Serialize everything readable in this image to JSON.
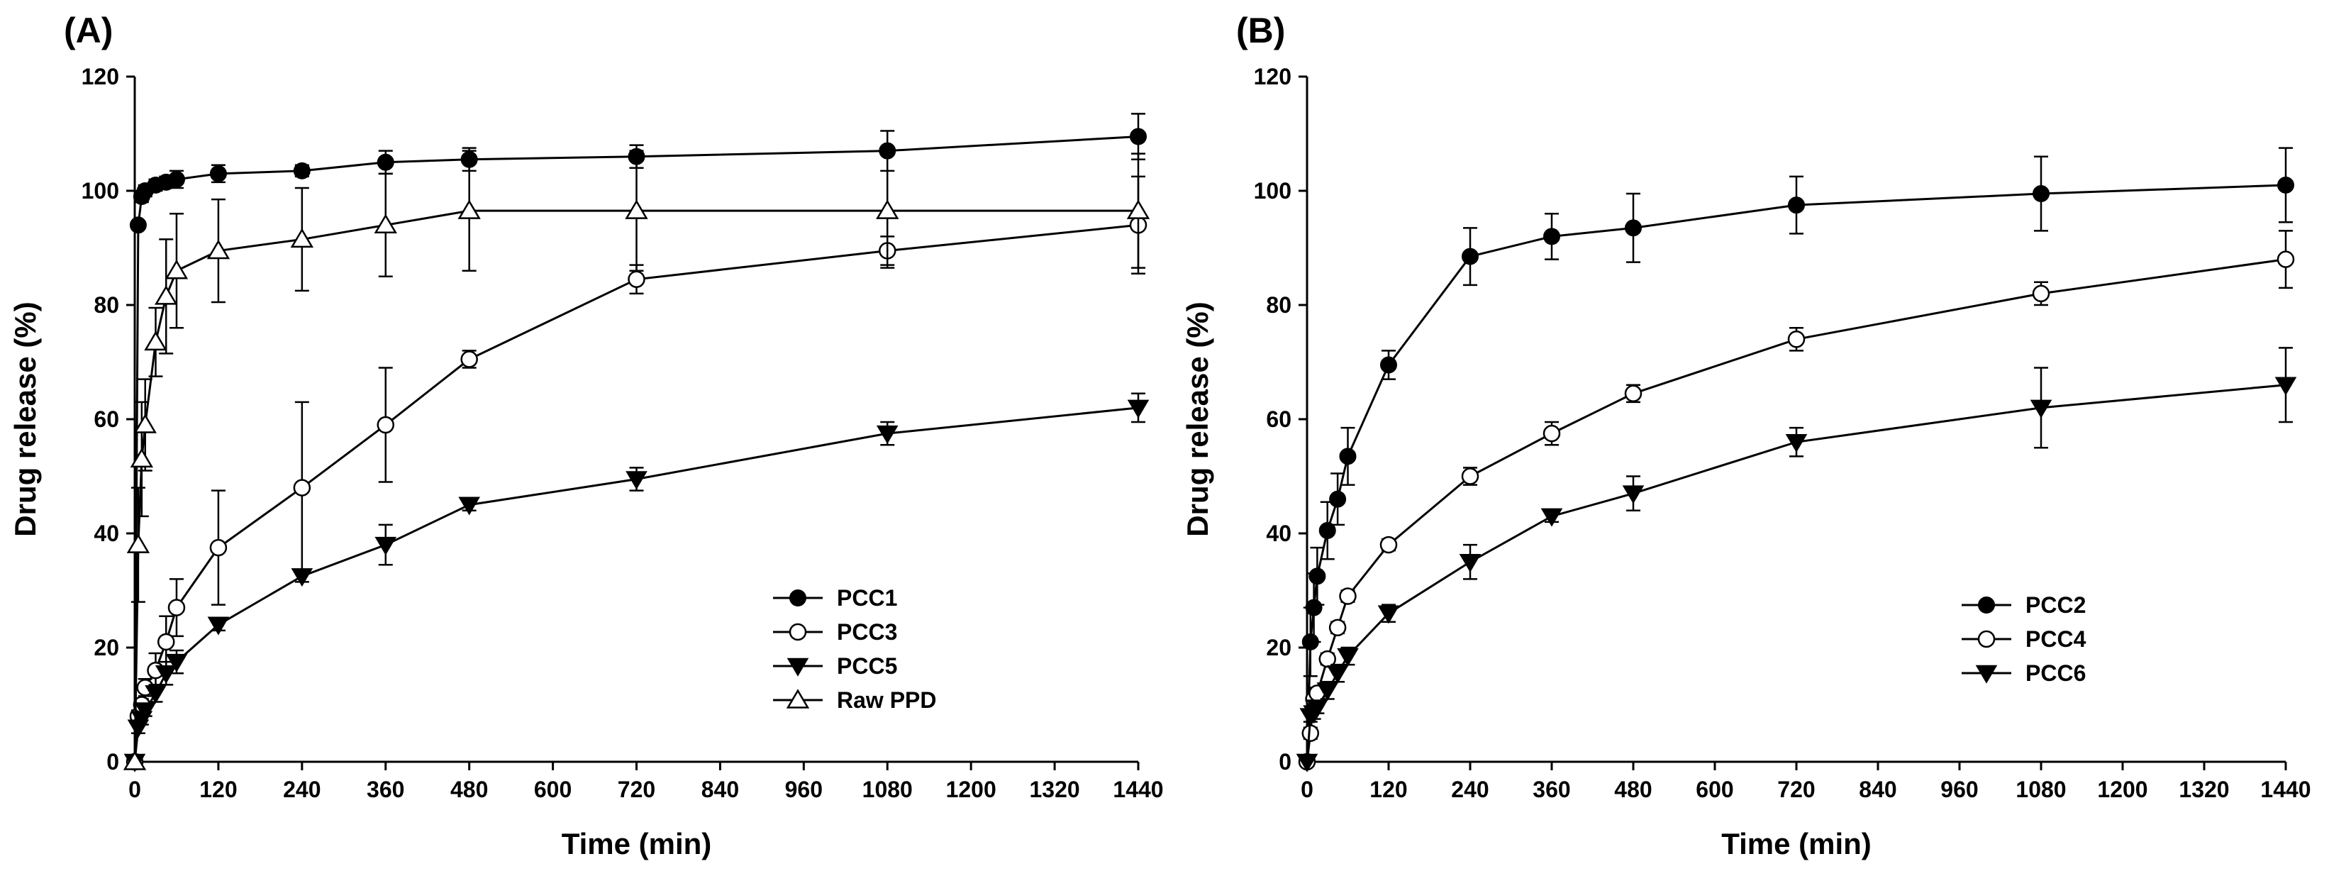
{
  "chart_data": [
    {
      "type": "line",
      "panel_label": "(A)",
      "xlabel": "Time (min)",
      "ylabel": "Drug release (%)",
      "xlim": [
        0,
        1440
      ],
      "ylim": [
        0,
        120
      ],
      "xticks": [
        0,
        120,
        240,
        360,
        480,
        600,
        720,
        840,
        960,
        1080,
        1200,
        1320,
        1440
      ],
      "yticks": [
        0,
        20,
        40,
        60,
        80,
        100,
        120
      ],
      "grid": false,
      "legend_position": "bottom-right",
      "series": [
        {
          "name": "PCC1",
          "marker": "filled-circle",
          "x": [
            0,
            5,
            10,
            15,
            30,
            45,
            60,
            120,
            240,
            360,
            480,
            720,
            1080,
            1440
          ],
          "y": [
            0,
            94,
            99,
            100,
            101,
            101.5,
            102,
            103,
            103.5,
            105,
            105.5,
            106,
            107,
            109.5
          ],
          "err": [
            0,
            0.5,
            1,
            1,
            1,
            1,
            1.5,
            1.5,
            1,
            2,
            2,
            2,
            3.5,
            4
          ]
        },
        {
          "name": "PCC3",
          "marker": "open-circle",
          "x": [
            0,
            5,
            10,
            15,
            30,
            45,
            60,
            120,
            240,
            360,
            480,
            720,
            1080,
            1440
          ],
          "y": [
            0,
            8,
            10,
            13,
            16,
            21,
            27,
            37.5,
            48,
            59,
            70.5,
            84.5,
            89.5,
            94
          ],
          "err": [
            0,
            1,
            1,
            1.5,
            3,
            4.5,
            5,
            10,
            15,
            10,
            1.5,
            2.5,
            2.5,
            8.5
          ]
        },
        {
          "name": "PCC5",
          "marker": "filled-triangle-down",
          "x": [
            0,
            5,
            10,
            15,
            30,
            45,
            60,
            120,
            240,
            360,
            480,
            720,
            1080,
            1440
          ],
          "y": [
            0,
            6,
            7.5,
            9,
            12,
            15.5,
            17.5,
            24,
            32.5,
            38,
            45,
            49.5,
            57.5,
            62
          ],
          "err": [
            0,
            1,
            1,
            1,
            1.5,
            2,
            2,
            1,
            1,
            3.5,
            1,
            2,
            2,
            2.5
          ]
        },
        {
          "name": "Raw PPD",
          "marker": "open-triangle-up",
          "x": [
            0,
            5,
            10,
            15,
            30,
            45,
            60,
            120,
            240,
            360,
            480,
            720,
            1080,
            1440
          ],
          "y": [
            0,
            38,
            53,
            59,
            73.5,
            81.5,
            86,
            89.5,
            91.5,
            94,
            96.5,
            96.5,
            96.5,
            96.5
          ],
          "err": [
            0,
            10,
            10,
            8,
            6,
            10,
            10,
            9,
            9,
            9,
            10.5,
            10.5,
            10,
            10
          ]
        }
      ]
    },
    {
      "type": "line",
      "panel_label": "(B)",
      "xlabel": "Time (min)",
      "ylabel": "Drug release (%)",
      "xlim": [
        0,
        1440
      ],
      "ylim": [
        0,
        120
      ],
      "xticks": [
        0,
        120,
        240,
        360,
        480,
        600,
        720,
        840,
        960,
        1080,
        1200,
        1320,
        1440
      ],
      "yticks": [
        0,
        20,
        40,
        60,
        80,
        100,
        120
      ],
      "grid": false,
      "legend_position": "bottom-right",
      "series": [
        {
          "name": "PCC2",
          "marker": "filled-circle",
          "x": [
            0,
            5,
            10,
            15,
            30,
            45,
            60,
            120,
            240,
            360,
            480,
            720,
            1080,
            1440
          ],
          "y": [
            0,
            21,
            27,
            32.5,
            40.5,
            46,
            53.5,
            69.5,
            88.5,
            92,
            93.5,
            97.5,
            99.5,
            101
          ],
          "err": [
            0,
            6,
            6,
            5,
            5,
            4.5,
            5,
            2.5,
            5,
            4,
            6,
            5,
            6.5,
            6.5
          ]
        },
        {
          "name": "PCC4",
          "marker": "open-circle",
          "x": [
            0,
            5,
            10,
            15,
            30,
            45,
            60,
            120,
            240,
            360,
            480,
            720,
            1080,
            1440
          ],
          "y": [
            0,
            5,
            11,
            12,
            18,
            23.5,
            29,
            38,
            50,
            57.5,
            64.5,
            74,
            82,
            88
          ],
          "err": [
            0,
            1,
            1,
            1,
            1,
            1,
            1,
            1,
            1.5,
            2,
            1.5,
            2,
            2,
            5
          ]
        },
        {
          "name": "PCC6",
          "marker": "filled-triangle-down",
          "x": [
            0,
            5,
            10,
            15,
            30,
            45,
            60,
            120,
            240,
            360,
            480,
            720,
            1080,
            1440
          ],
          "y": [
            0,
            8,
            8.5,
            9.5,
            12.5,
            15.5,
            18.5,
            26,
            35,
            43,
            47,
            56,
            62,
            66
          ],
          "err": [
            0,
            1,
            1,
            1,
            1.5,
            1.5,
            1.5,
            1.5,
            3,
            1,
            3,
            2.5,
            7,
            6.5
          ]
        }
      ]
    }
  ]
}
